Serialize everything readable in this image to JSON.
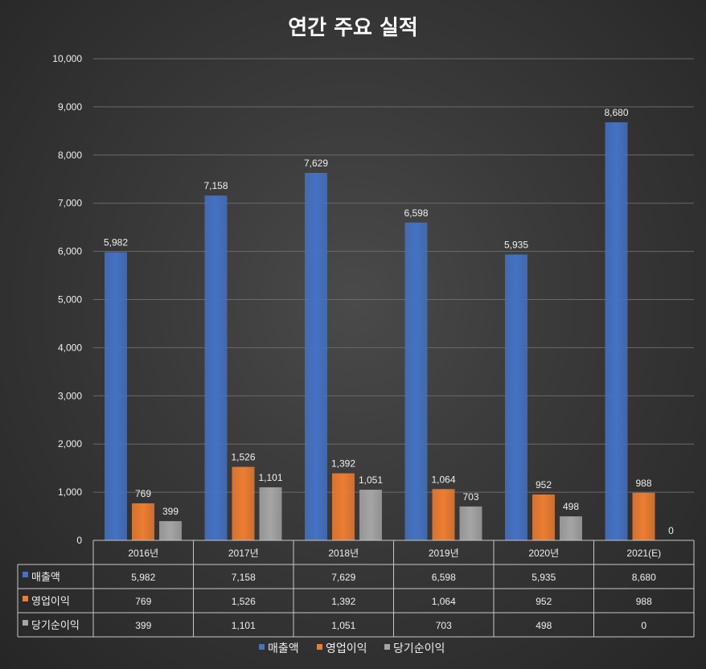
{
  "chart_data": {
    "type": "bar",
    "title": "연간 주요 실적",
    "categories": [
      "2016년",
      "2017년",
      "2018년",
      "2019년",
      "2020년",
      "2021(E)"
    ],
    "series": [
      {
        "name": "매출액",
        "color": "#4472c4",
        "values": [
          5982,
          7158,
          7629,
          6598,
          5935,
          8680
        ]
      },
      {
        "name": "영업이익",
        "color": "#ed7d31",
        "values": [
          769,
          1526,
          1392,
          1064,
          952,
          988
        ]
      },
      {
        "name": "당기순이익",
        "color": "#a5a5a5",
        "values": [
          399,
          1101,
          1051,
          703,
          498,
          0
        ]
      }
    ],
    "ylim": [
      0,
      10000
    ],
    "yticks": [
      0,
      1000,
      2000,
      3000,
      4000,
      5000,
      6000,
      7000,
      8000,
      9000,
      10000
    ],
    "ytick_labels": [
      "0",
      "1,000",
      "2,000",
      "3,000",
      "4,000",
      "5,000",
      "6,000",
      "7,000",
      "8,000",
      "9,000",
      "10,000"
    ],
    "grid": true,
    "data_table": true,
    "legend_position": "bottom"
  }
}
